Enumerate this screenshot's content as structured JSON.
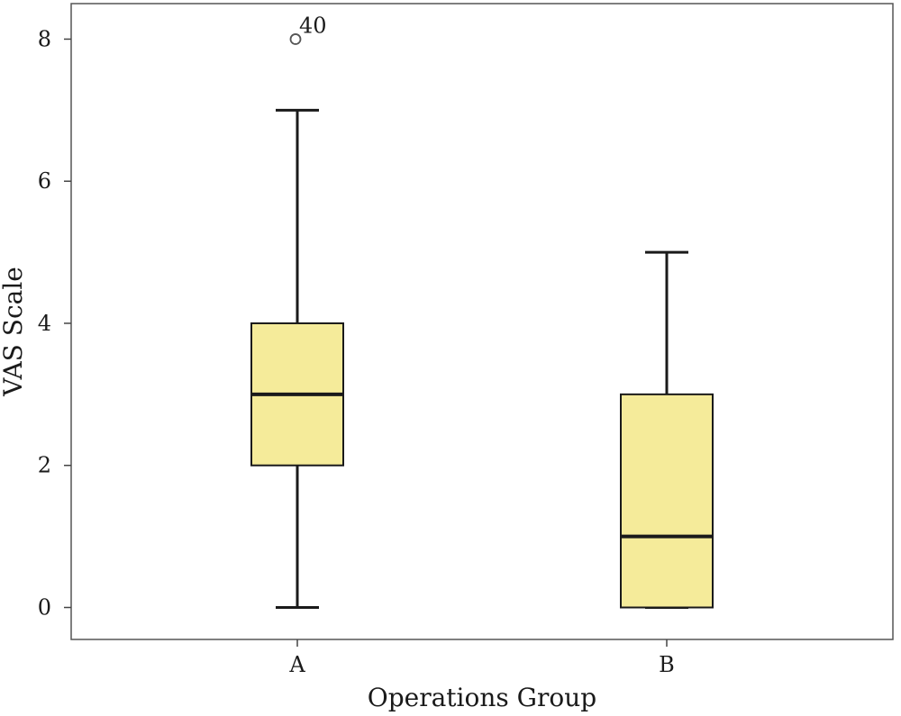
{
  "chart_data": {
    "type": "boxplot",
    "title": "",
    "xlabel": "Operations Group",
    "ylabel": "VAS Scale",
    "ylim": [
      -0.45,
      8.5
    ],
    "yticks": [
      0,
      2,
      4,
      6,
      8
    ],
    "grid": false,
    "categories": [
      "A",
      "B"
    ],
    "box_color": "#f5eb9a",
    "line_color": "#1a1a1a",
    "boxes": [
      {
        "category": "A",
        "whisker_low": 0,
        "q1": 2,
        "median": 3,
        "q3": 4,
        "whisker_high": 7,
        "outliers": [
          {
            "value": 8,
            "label": "40"
          }
        ]
      },
      {
        "category": "B",
        "whisker_low": 0,
        "q1": 0,
        "median": 1,
        "q3": 3,
        "whisker_high": 5,
        "outliers": []
      }
    ]
  }
}
